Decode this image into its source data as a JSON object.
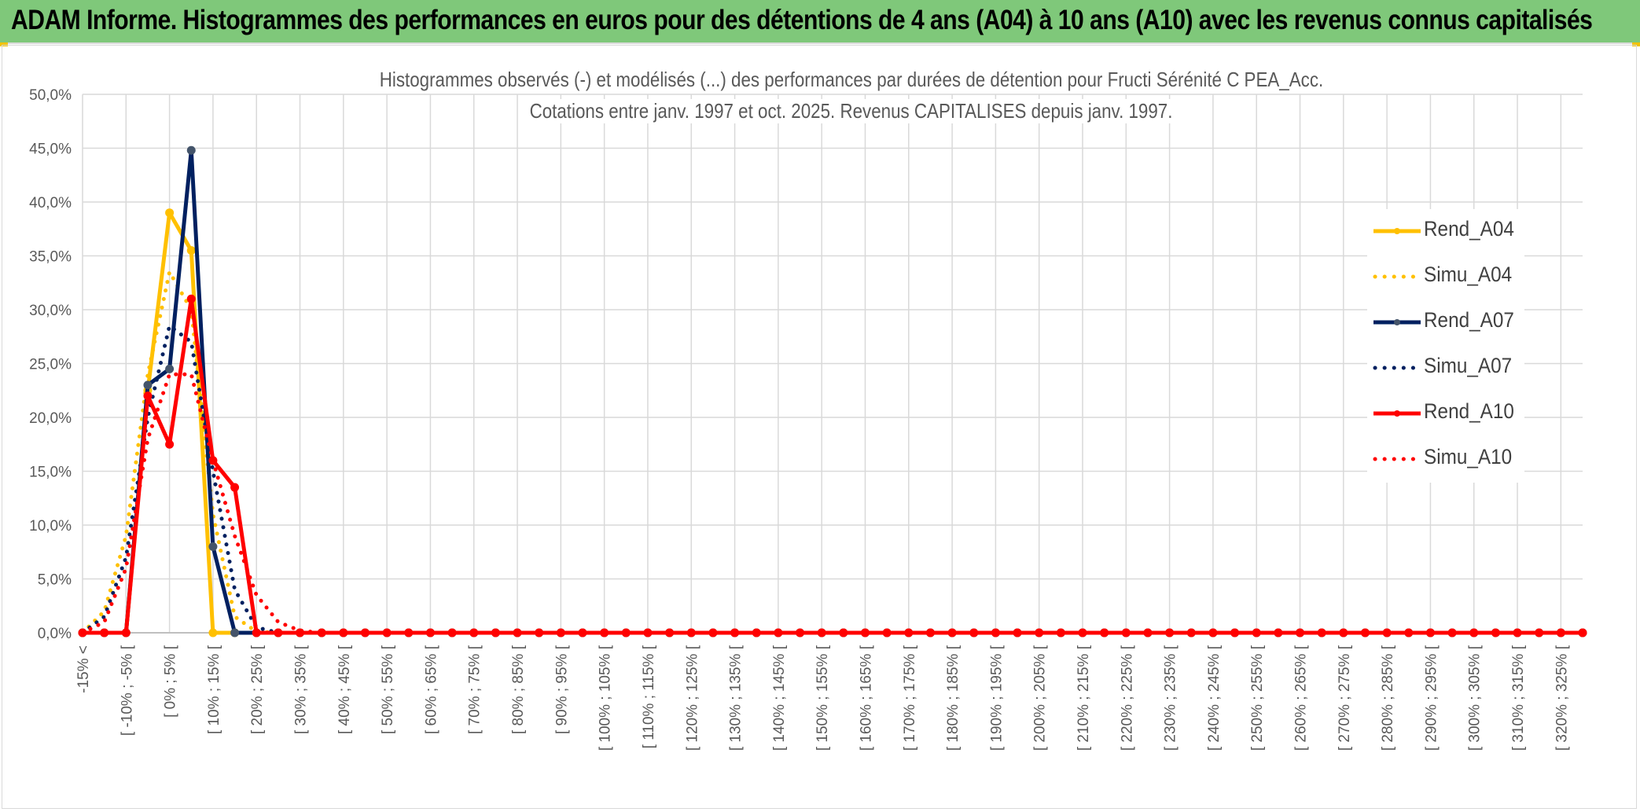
{
  "header": {
    "title": "ADAM Informe. Histogrammes des performances en euros pour des détentions de 4 ans (A04) à 10 ans (A10) avec les revenus connus capitalisés"
  },
  "chart_data": {
    "type": "line",
    "title": "Histogrammes observés (-) et modélisés (...) des performances par durées de détention pour Fructi Sérénité C PEA_Acc.",
    "subtitle": "Cotations entre janv. 1997 et oct. 2025. Revenus CAPITALISES depuis janv. 1997.",
    "ylim": [
      0,
      50
    ],
    "y_ticks": [
      "0,0%",
      "5,0%",
      "10,0%",
      "15,0%",
      "20,0%",
      "25,0%",
      "30,0%",
      "35,0%",
      "40,0%",
      "45,0%",
      "50,0%"
    ],
    "grid": true,
    "legend_position": "right",
    "categories_count": 70,
    "x_tick_labels": [
      "-15% <",
      "[ -10% ; -5% [",
      "[ 0% ; 5% [",
      "[ 10% ; 15% [",
      "[ 20% ; 25% [",
      "[ 30% ; 35% [",
      "[ 40% ; 45% [",
      "[ 50% ; 55% [",
      "[ 60% ; 65% [",
      "[ 70% ; 75% [",
      "[ 80% ; 85% [",
      "[ 90% ; 95% [",
      "[ 100% ; 105% [",
      "[ 110% ; 115% [",
      "[ 120% ; 125% [",
      "[ 130% ; 135% [",
      "[ 140% ; 145% [",
      "[ 150% ; 155% [",
      "[ 160% ; 165% [",
      "[ 170% ; 175% [",
      "[ 180% ; 185% [",
      "[ 190% ; 195% [",
      "[ 200% ; 205% [",
      "[ 210% ; 215% [",
      "[ 220% ; 225% [",
      "[ 230% ; 235% [",
      "[ 240% ; 245% [",
      "[ 250% ; 255% [",
      "[ 260% ; 265% [",
      "[ 270% ; 275% [",
      "[ 280% ; 285% [",
      "[ 290% ; 295% [",
      "[ 300% ; 305% [",
      "[ 310% ; 315% [",
      "[ 320% ; 325% ["
    ],
    "series": [
      {
        "name": "Rend_A04",
        "style": "solid",
        "color": "#ffc000",
        "values": [
          0,
          0,
          0,
          22.5,
          39,
          35.5,
          0,
          0,
          0
        ]
      },
      {
        "name": "Simu_A04",
        "style": "dotted",
        "color": "#ffc000",
        "values": [
          0,
          2,
          9,
          24,
          33.5,
          30,
          11,
          1.5,
          0.1,
          0
        ]
      },
      {
        "name": "Rend_A07",
        "style": "solid",
        "color": "#002060",
        "values": [
          0,
          0,
          0,
          23,
          24.5,
          44.8,
          8,
          0,
          0
        ]
      },
      {
        "name": "Simu_A07",
        "style": "dotted",
        "color": "#002060",
        "values": [
          0,
          1.5,
          7,
          20,
          28.5,
          27,
          15,
          4,
          0.5,
          0
        ]
      },
      {
        "name": "Rend_A10",
        "style": "solid",
        "color": "#ff0000",
        "values": [
          0,
          0,
          0,
          22,
          17.5,
          31,
          16,
          13.5,
          0,
          0
        ]
      },
      {
        "name": "Simu_A10",
        "style": "dotted",
        "color": "#ff0000",
        "values": [
          0,
          1,
          6,
          18,
          24,
          24,
          16,
          9,
          3.5,
          1,
          0.2,
          0
        ]
      }
    ]
  }
}
